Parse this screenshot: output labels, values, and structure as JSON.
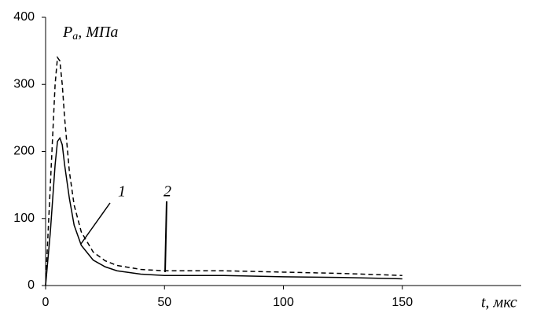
{
  "chart_data": {
    "type": "line",
    "y_label_parts": [
      "P",
      "a",
      ", МПа"
    ],
    "x_label": "t, мкс",
    "x": [
      0,
      2,
      4,
      5,
      6,
      7,
      8,
      10,
      12,
      15,
      20,
      25,
      30,
      40,
      50,
      75,
      100,
      125,
      150
    ],
    "series": [
      {
        "name": "1",
        "color": "#000000",
        "dash": false,
        "values": [
          0,
          80,
          180,
          215,
          220,
          210,
          180,
          130,
          90,
          60,
          38,
          28,
          22,
          17,
          15,
          15,
          13,
          12,
          10
        ]
      },
      {
        "name": "2",
        "color": "#000000",
        "dash": true,
        "values": [
          0,
          150,
          300,
          340,
          335,
          300,
          250,
          170,
          120,
          80,
          50,
          37,
          30,
          24,
          22,
          22,
          20,
          18,
          15
        ]
      }
    ],
    "xlim": [
      0,
      200
    ],
    "ylim": [
      0,
      400
    ],
    "xticks": [
      0,
      50,
      100,
      150
    ],
    "yticks": [
      0,
      100,
      200,
      300,
      400
    ],
    "grid": false
  }
}
